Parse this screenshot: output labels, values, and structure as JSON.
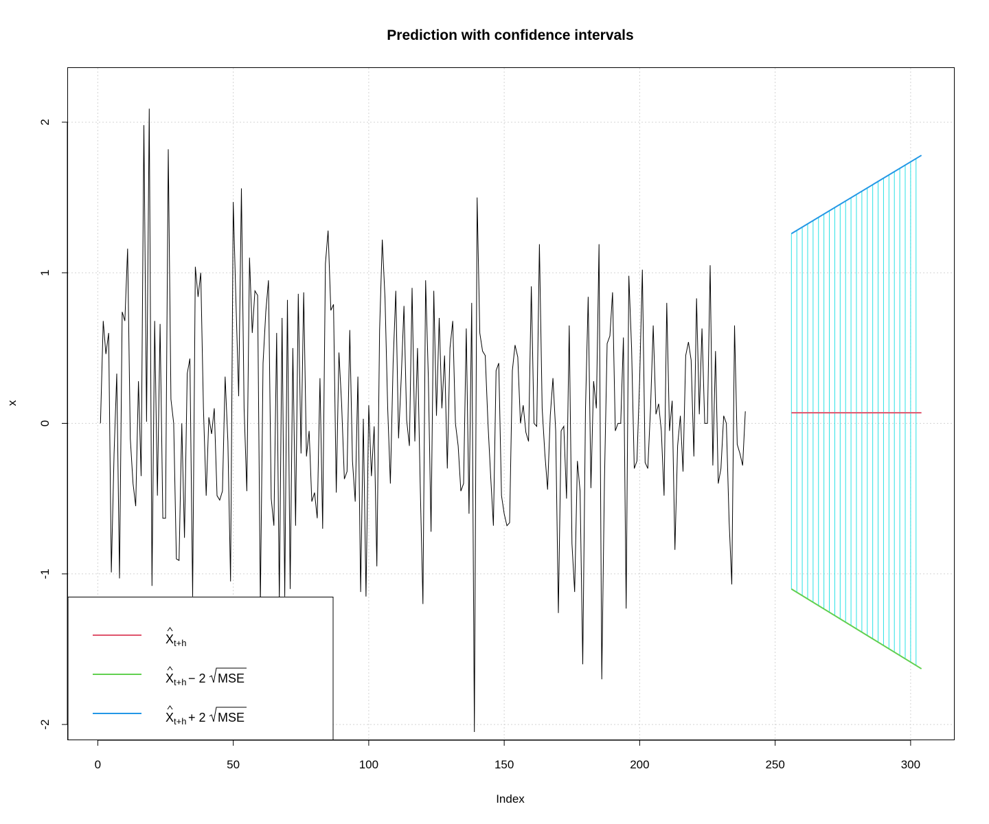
{
  "chart_data": {
    "type": "line",
    "title": "Prediction with confidence intervals",
    "xlabel": "Index",
    "ylabel": "x",
    "xlim": [
      -11,
      316
    ],
    "ylim": [
      -2.1,
      2.36
    ],
    "x_ticks": [
      0,
      50,
      100,
      150,
      200,
      250,
      300
    ],
    "y_ticks": [
      -2,
      -1,
      0,
      1,
      2
    ],
    "grid": true,
    "legend_position": "bottom-left",
    "colors": {
      "observed": "#000000",
      "forecast": "#DF536B",
      "lower": "#61D04F",
      "upper": "#2297E6",
      "interval": "#28E2E5",
      "grid": "#D3D3D3"
    },
    "series": [
      {
        "name": "x",
        "x_start": 1,
        "values": [
          0.0,
          0.68,
          0.46,
          0.6,
          -0.99,
          -0.2,
          0.33,
          -1.03,
          0.74,
          0.68,
          1.16,
          -0.1,
          -0.4,
          -0.55,
          0.28,
          -0.35,
          1.98,
          0.01,
          2.09,
          -1.08,
          0.68,
          -0.48,
          0.66,
          -0.63,
          -0.63,
          1.82,
          0.16,
          0.0,
          -0.9,
          -0.91,
          0.0,
          -0.76,
          0.33,
          0.43,
          -1.15,
          1.04,
          0.84,
          1.0,
          0.1,
          -0.48,
          0.04,
          -0.07,
          0.1,
          -0.48,
          -0.51,
          -0.45,
          0.31,
          -0.12,
          -1.05,
          1.47,
          0.8,
          0.18,
          1.56,
          0.1,
          -0.45,
          1.1,
          0.6,
          0.88,
          0.85,
          -1.2,
          0.4,
          0.74,
          0.95,
          -0.5,
          -0.68,
          0.6,
          -1.18,
          0.7,
          -1.15,
          0.82,
          -1.1,
          0.5,
          -0.68,
          0.86,
          -0.2,
          0.87,
          -0.22,
          -0.05,
          -0.52,
          -0.46,
          -0.63,
          0.3,
          -0.7,
          1.06,
          1.28,
          0.75,
          0.79,
          -0.46,
          0.47,
          0.13,
          -0.37,
          -0.32,
          0.62,
          -0.25,
          -0.52,
          0.31,
          -1.12,
          0.03,
          -1.15,
          0.12,
          -0.35,
          -0.02,
          -0.95,
          0.62,
          1.22,
          0.83,
          0.1,
          -0.4,
          0.4,
          0.88,
          -0.1,
          0.3,
          0.78,
          0.02,
          -0.15,
          0.9,
          -0.12,
          0.5,
          -0.4,
          -1.2,
          0.95,
          0.3,
          -0.72,
          0.88,
          0.05,
          0.7,
          0.1,
          0.45,
          -0.3,
          0.5,
          0.68,
          0.0,
          -0.15,
          -0.45,
          -0.4,
          0.63,
          -0.6,
          0.8,
          -2.05,
          1.5,
          0.6,
          0.48,
          0.45,
          0.0,
          -0.35,
          -0.68,
          0.35,
          0.4,
          -0.48,
          -0.6,
          -0.68,
          -0.66,
          0.35,
          0.52,
          0.44,
          0.0,
          0.12,
          -0.06,
          -0.12,
          0.91,
          0.0,
          -0.02,
          1.19,
          0.1,
          -0.2,
          -0.44,
          0.05,
          0.3,
          -0.05,
          -1.26,
          -0.05,
          -0.02,
          -0.5,
          0.65,
          -0.8,
          -1.12,
          -0.25,
          -0.45,
          -1.6,
          0.1,
          0.84,
          -0.43,
          0.28,
          0.1,
          1.19,
          -1.7,
          -0.38,
          0.53,
          0.58,
          0.87,
          -0.05,
          0.0,
          0.0,
          0.57,
          -1.23,
          0.98,
          0.5,
          -0.3,
          -0.25,
          0.3,
          1.02,
          -0.26,
          -0.3,
          0.1,
          0.65,
          0.06,
          0.13,
          -0.05,
          -0.48,
          0.8,
          -0.05,
          0.15,
          -0.84,
          -0.15,
          0.05,
          -0.32,
          0.45,
          0.54,
          0.42,
          -0.22,
          0.83,
          0.06,
          0.63,
          0.0,
          0.0,
          1.05,
          -0.28,
          0.48,
          -0.4,
          -0.3,
          0.05,
          0.0,
          -0.65,
          -1.07,
          0.65,
          -0.14,
          -0.2,
          -0.28,
          0.08
        ]
      },
      {
        "name": "X̂t+h",
        "x": [
          256,
          304
        ],
        "values": [
          0.07,
          0.07
        ]
      },
      {
        "name": "X̂t+h − 2√MSE",
        "x": [
          256,
          304
        ],
        "values": [
          -1.1,
          -1.63
        ]
      },
      {
        "name": "X̂t+h + 2√MSE",
        "x": [
          256,
          304
        ],
        "values": [
          1.26,
          1.78
        ]
      }
    ],
    "legend": {
      "entries": [
        {
          "hat": "X",
          "sub": "t+h",
          "rest": "",
          "sqrt": ""
        },
        {
          "hat": "X",
          "sub": "t+h",
          "rest": " − 2",
          "sqrt": "MSE"
        },
        {
          "hat": "X",
          "sub": "t+h",
          "rest": " + 2",
          "sqrt": "MSE"
        }
      ]
    }
  }
}
